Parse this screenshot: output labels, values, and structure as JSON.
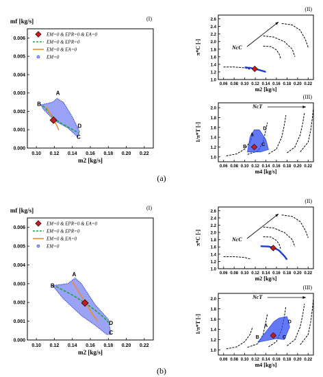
{
  "figure": {
    "label_a": "(a)",
    "label_b": "(b)"
  },
  "chart_data": [
    {
      "id": "a-main",
      "type": "scatter",
      "panel": "(I)",
      "xlabel": "m2 [kg/s]",
      "ylabel": "mf [kg/s]",
      "xlim": [
        0.09,
        0.23
      ],
      "ylim": [
        0,
        0.0065
      ],
      "xticks": [
        "0.10",
        "0.12",
        "0.14",
        "0.16",
        "0.18",
        "0.20",
        "0.22"
      ],
      "yticks": [
        "0.000",
        "0.001",
        "0.002",
        "0.003",
        "0.004",
        "0.005",
        "0.006"
      ],
      "legend": [
        "EM=0 & EPR=0 & EA=0",
        "EM=0 & EPR=0",
        "EM=0 & EA=0",
        "EM=0"
      ],
      "region_EM0": [
        [
          0.105,
          0.00235
        ],
        [
          0.118,
          0.0025
        ],
        [
          0.123,
          0.0027
        ],
        [
          0.13,
          0.0025
        ],
        [
          0.14,
          0.0017
        ],
        [
          0.148,
          0.0009
        ],
        [
          0.146,
          0.0006
        ],
        [
          0.135,
          0.0011
        ],
        [
          0.12,
          0.0015
        ],
        [
          0.108,
          0.0021
        ]
      ],
      "line_EPR0": [
        [
          0.107,
          0.00232
        ],
        [
          0.115,
          0.0019
        ],
        [
          0.12,
          0.00158
        ],
        [
          0.13,
          0.00128
        ],
        [
          0.14,
          0.00102
        ],
        [
          0.147,
          0.00082
        ]
      ],
      "line_EA0": [
        [
          0.111,
          0.00225
        ],
        [
          0.115,
          0.0019
        ],
        [
          0.119,
          0.00155
        ],
        [
          0.123,
          0.0012
        ],
        [
          0.125,
          0.00098
        ]
      ],
      "marker": [
        0.119,
        0.00152
      ],
      "point_labels": [
        {
          "t": "A",
          "x": 0.124,
          "y": 0.0029
        },
        {
          "t": "B",
          "x": 0.103,
          "y": 0.0023
        },
        {
          "t": "C",
          "x": 0.147,
          "y": 0.0005
        },
        {
          "t": "D",
          "x": 0.148,
          "y": 0.0011
        }
      ]
    },
    {
      "id": "a-II",
      "type": "line",
      "panel": "(II)",
      "xlabel": "m2 [kg/s]",
      "ylabel": "π*C [-]",
      "annotation": "NcC",
      "xlim": [
        0.05,
        0.23
      ],
      "ylim": [
        1.0,
        2.7
      ],
      "xticks": [
        "0.06",
        "0.08",
        "0.10",
        "0.12",
        "0.14",
        "0.16",
        "0.18",
        "0.20",
        "0.22"
      ],
      "yticks": [
        "1.0",
        "1.2",
        "1.4",
        "1.6",
        "1.8",
        "2.0",
        "2.2",
        "2.4",
        "2.6"
      ],
      "series": [
        {
          "values": [
            [
              0.06,
              1.33
            ],
            [
              0.08,
              1.33
            ],
            [
              0.1,
              1.31
            ],
            [
              0.11,
              1.27
            ]
          ]
        },
        {
          "values": [
            [
              0.135,
              1.88
            ],
            [
              0.15,
              1.87
            ],
            [
              0.16,
              1.78
            ],
            [
              0.165,
              1.68
            ],
            [
              0.168,
              1.55
            ]
          ]
        },
        {
          "values": [
            [
              0.135,
              2.15
            ],
            [
              0.155,
              2.12
            ],
            [
              0.175,
              2.0
            ],
            [
              0.19,
              1.8
            ],
            [
              0.195,
              1.6
            ]
          ]
        },
        {
          "values": [
            [
              0.17,
              2.48
            ],
            [
              0.19,
              2.44
            ],
            [
              0.205,
              2.3
            ],
            [
              0.215,
              2.05
            ],
            [
              0.22,
              1.85
            ]
          ]
        }
      ],
      "op_line": [
        [
          0.1,
          1.32
        ],
        [
          0.11,
          1.31
        ],
        [
          0.12,
          1.28
        ],
        [
          0.13,
          1.24
        ],
        [
          0.14,
          1.2
        ]
      ],
      "marker": [
        0.119,
        1.28
      ]
    },
    {
      "id": "a-III",
      "type": "line",
      "panel": "(III)",
      "xlabel": "m4 [kg/s]",
      "ylabel": "1/π*T [-]",
      "annotation": "NcT",
      "xlim": [
        0.05,
        0.23
      ],
      "ylim": [
        0.9,
        2.1
      ],
      "xticks": [
        "0.06",
        "0.08",
        "0.10",
        "0.12",
        "0.14",
        "0.16",
        "0.18",
        "0.20",
        "0.22"
      ],
      "yticks": [
        "1.0",
        "1.2",
        "1.4",
        "1.6",
        "1.8",
        "2.0"
      ],
      "series": [
        {
          "values": [
            [
              0.065,
              1.02
            ],
            [
              0.085,
              1.06
            ],
            [
              0.1,
              1.16
            ],
            [
              0.11,
              1.3
            ],
            [
              0.115,
              1.45
            ]
          ]
        },
        {
          "values": [
            [
              0.105,
              1.05
            ],
            [
              0.125,
              1.12
            ],
            [
              0.135,
              1.3
            ],
            [
              0.14,
              1.55
            ],
            [
              0.143,
              1.7
            ]
          ]
        },
        {
          "values": [
            [
              0.145,
              1.06
            ],
            [
              0.16,
              1.16
            ],
            [
              0.17,
              1.4
            ],
            [
              0.175,
              1.65
            ],
            [
              0.178,
              1.85
            ]
          ]
        },
        {
          "values": [
            [
              0.18,
              1.08
            ],
            [
              0.195,
              1.2
            ],
            [
              0.205,
              1.45
            ],
            [
              0.21,
              1.7
            ],
            [
              0.213,
              1.9
            ]
          ]
        },
        {
          "values": [
            [
              0.205,
              1.1
            ],
            [
              0.22,
              1.3
            ],
            [
              0.225,
              1.55
            ],
            [
              0.228,
              1.8
            ],
            [
              0.23,
              2.0
            ]
          ]
        }
      ],
      "cloud": [
        [
          0.105,
          1.1
        ],
        [
          0.11,
          1.4
        ],
        [
          0.118,
          1.55
        ],
        [
          0.128,
          1.55
        ],
        [
          0.14,
          1.35
        ],
        [
          0.145,
          1.15
        ],
        [
          0.13,
          1.1
        ]
      ],
      "marker": [
        0.118,
        1.2
      ],
      "point_labels": [
        {
          "t": "A",
          "x": 0.114,
          "y": 1.42
        },
        {
          "t": "B",
          "x": 0.1,
          "y": 1.18
        },
        {
          "t": "C",
          "x": 0.135,
          "y": 1.22
        },
        {
          "t": "D",
          "x": 0.138,
          "y": 1.55
        }
      ]
    },
    {
      "id": "b-main",
      "type": "scatter",
      "panel": "(I)",
      "xlabel": "m2 [kg/s]",
      "ylabel": "mf [kg/s]",
      "xlim": [
        0.09,
        0.23
      ],
      "ylim": [
        0,
        0.0065
      ],
      "xticks": [
        "0.10",
        "0.12",
        "0.14",
        "0.16",
        "0.18",
        "0.20",
        "0.22"
      ],
      "yticks": [
        "0.000",
        "0.001",
        "0.002",
        "0.003",
        "0.004",
        "0.005",
        "0.006"
      ],
      "legend": [
        "EM=0 & EPR=0 & EA=0",
        "EM=0 & EPR=0",
        "EM=0 & EA=0",
        "EM=0"
      ],
      "region_EM0": [
        [
          0.118,
          0.0029
        ],
        [
          0.135,
          0.003
        ],
        [
          0.143,
          0.0033
        ],
        [
          0.15,
          0.003
        ],
        [
          0.165,
          0.0019
        ],
        [
          0.18,
          0.0011
        ],
        [
          0.183,
          0.0003
        ],
        [
          0.178,
          0.0003
        ],
        [
          0.165,
          0.0008
        ],
        [
          0.15,
          0.0013
        ],
        [
          0.13,
          0.0022
        ]
      ],
      "line_EPR0": [
        [
          0.122,
          0.00285
        ],
        [
          0.14,
          0.0024
        ],
        [
          0.155,
          0.00195
        ],
        [
          0.165,
          0.0016
        ],
        [
          0.175,
          0.0012
        ],
        [
          0.181,
          0.0009
        ]
      ],
      "line_EA0": [
        [
          0.14,
          0.0031
        ],
        [
          0.148,
          0.0025
        ],
        [
          0.155,
          0.00195
        ],
        [
          0.162,
          0.0014
        ],
        [
          0.168,
          0.001
        ]
      ],
      "marker": [
        0.154,
        0.00197
      ],
      "point_labels": [
        {
          "t": "A",
          "x": 0.142,
          "y": 0.0034
        },
        {
          "t": "B",
          "x": 0.118,
          "y": 0.0028
        },
        {
          "t": "C",
          "x": 0.183,
          "y": 0.0003
        },
        {
          "t": "D",
          "x": 0.183,
          "y": 0.0008
        }
      ]
    },
    {
      "id": "b-II",
      "type": "line",
      "panel": "(II)",
      "xlabel": "m2 [kg/s]",
      "ylabel": "π*C [-]",
      "annotation": "NcC",
      "xlim": [
        0.05,
        0.23
      ],
      "ylim": [
        1.0,
        2.7
      ],
      "xticks": [
        "0.06",
        "0.08",
        "0.10",
        "0.12",
        "0.14",
        "0.16",
        "0.18",
        "0.20",
        "0.22"
      ],
      "yticks": [
        "1.0",
        "1.2",
        "1.4",
        "1.6",
        "1.8",
        "2.0",
        "2.2",
        "2.4",
        "2.6"
      ],
      "series": [
        {
          "values": [
            [
              0.06,
              1.33
            ],
            [
              0.08,
              1.33
            ],
            [
              0.1,
              1.31
            ],
            [
              0.11,
              1.27
            ]
          ]
        },
        {
          "values": [
            [
              0.135,
              1.88
            ],
            [
              0.15,
              1.87
            ],
            [
              0.16,
              1.78
            ],
            [
              0.165,
              1.68
            ],
            [
              0.168,
              1.55
            ]
          ]
        },
        {
          "values": [
            [
              0.135,
              2.15
            ],
            [
              0.155,
              2.12
            ],
            [
              0.175,
              2.0
            ],
            [
              0.19,
              1.8
            ],
            [
              0.195,
              1.6
            ]
          ]
        },
        {
          "values": [
            [
              0.17,
              2.48
            ],
            [
              0.19,
              2.44
            ],
            [
              0.205,
              2.3
            ],
            [
              0.215,
              2.05
            ],
            [
              0.22,
              1.85
            ]
          ]
        }
      ],
      "op_line": [
        [
          0.13,
          1.62
        ],
        [
          0.145,
          1.61
        ],
        [
          0.155,
          1.58
        ],
        [
          0.165,
          1.5
        ],
        [
          0.175,
          1.35
        ],
        [
          0.18,
          1.25
        ]
      ],
      "marker": [
        0.154,
        1.57
      ]
    },
    {
      "id": "b-III",
      "type": "line",
      "panel": "(III)",
      "xlabel": "m4 [kg/s]",
      "ylabel": "1/π*T [-]",
      "annotation": "NcT",
      "xlim": [
        0.05,
        0.23
      ],
      "ylim": [
        0.9,
        2.1
      ],
      "xticks": [
        "0.06",
        "0.08",
        "0.10",
        "0.12",
        "0.14",
        "0.16",
        "0.18",
        "0.20",
        "0.22"
      ],
      "yticks": [
        "1.0",
        "1.2",
        "1.4",
        "1.6",
        "1.8",
        "2.0"
      ],
      "series": [
        {
          "values": [
            [
              0.065,
              1.02
            ],
            [
              0.085,
              1.06
            ],
            [
              0.1,
              1.16
            ],
            [
              0.11,
              1.3
            ],
            [
              0.115,
              1.45
            ]
          ]
        },
        {
          "values": [
            [
              0.105,
              1.05
            ],
            [
              0.125,
              1.12
            ],
            [
              0.135,
              1.3
            ],
            [
              0.14,
              1.55
            ],
            [
              0.143,
              1.7
            ]
          ]
        },
        {
          "values": [
            [
              0.145,
              1.06
            ],
            [
              0.16,
              1.16
            ],
            [
              0.17,
              1.4
            ],
            [
              0.175,
              1.65
            ],
            [
              0.178,
              1.85
            ]
          ]
        },
        {
          "values": [
            [
              0.18,
              1.08
            ],
            [
              0.195,
              1.2
            ],
            [
              0.205,
              1.45
            ],
            [
              0.21,
              1.7
            ],
            [
              0.213,
              1.9
            ]
          ]
        },
        {
          "values": [
            [
              0.205,
              1.1
            ],
            [
              0.22,
              1.3
            ],
            [
              0.225,
              1.55
            ],
            [
              0.228,
              1.8
            ],
            [
              0.23,
              2.0
            ]
          ]
        }
      ],
      "cloud": [
        [
          0.125,
          1.15
        ],
        [
          0.14,
          1.35
        ],
        [
          0.155,
          1.55
        ],
        [
          0.165,
          1.62
        ],
        [
          0.18,
          1.65
        ],
        [
          0.185,
          1.45
        ],
        [
          0.175,
          1.2
        ],
        [
          0.16,
          1.22
        ],
        [
          0.15,
          1.2
        ]
      ],
      "marker": [
        0.154,
        1.28
      ],
      "point_labels": [
        {
          "t": "A",
          "x": 0.14,
          "y": 1.45
        },
        {
          "t": "B",
          "x": 0.124,
          "y": 1.22
        },
        {
          "t": "C",
          "x": 0.175,
          "y": 1.22
        },
        {
          "t": "D",
          "x": 0.185,
          "y": 1.52
        }
      ]
    }
  ]
}
